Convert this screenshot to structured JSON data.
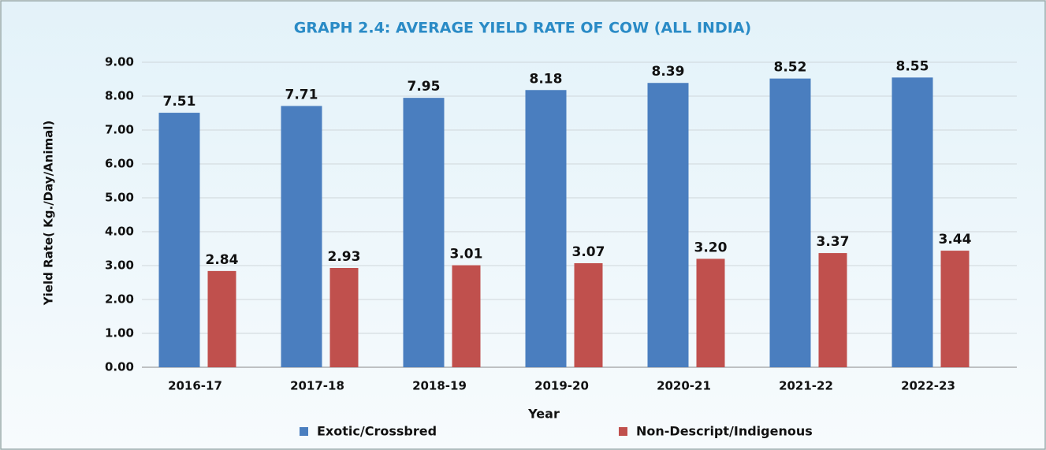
{
  "chart_data": {
    "type": "bar",
    "title": "GRAPH 2.4: AVERAGE YIELD RATE OF COW (ALL INDIA)",
    "x_label": "Year",
    "y_label": "Yield Rate( Kg./Day/Animal)",
    "categories": [
      "2016-17",
      "2017-18",
      "2018-19",
      "2019-20",
      "2020-21",
      "2021-22",
      "2022-23"
    ],
    "series": [
      {
        "name": "Exotic/Crossbred",
        "color": "#4a7ebf",
        "values": [
          7.51,
          7.71,
          7.95,
          8.18,
          8.39,
          8.52,
          8.55
        ],
        "value_labels": [
          "7.51",
          "7.71",
          "7.95",
          "8.18",
          "8.39",
          "8.52",
          "8.55"
        ]
      },
      {
        "name": "Non-Descript/Indigenous",
        "color": "#c0504d",
        "values": [
          2.84,
          2.93,
          3.01,
          3.07,
          3.2,
          3.37,
          3.44
        ],
        "value_labels": [
          "2.84",
          "2.93",
          "3.01",
          "3.07",
          "3.20",
          "3.37",
          "3.44"
        ]
      }
    ],
    "ylim": [
      0,
      9
    ],
    "yticks": [
      {
        "value": 0,
        "label": "0.00"
      },
      {
        "value": 1,
        "label": "1.00"
      },
      {
        "value": 2,
        "label": "2.00"
      },
      {
        "value": 3,
        "label": "3.00"
      },
      {
        "value": 4,
        "label": "4.00"
      },
      {
        "value": 5,
        "label": "5.00"
      },
      {
        "value": 6,
        "label": "6.00"
      },
      {
        "value": 7,
        "label": "7.00"
      },
      {
        "value": 8,
        "label": "8.00"
      },
      {
        "value": 9,
        "label": "9.00"
      }
    ],
    "grid": true,
    "legend": "bottom"
  }
}
